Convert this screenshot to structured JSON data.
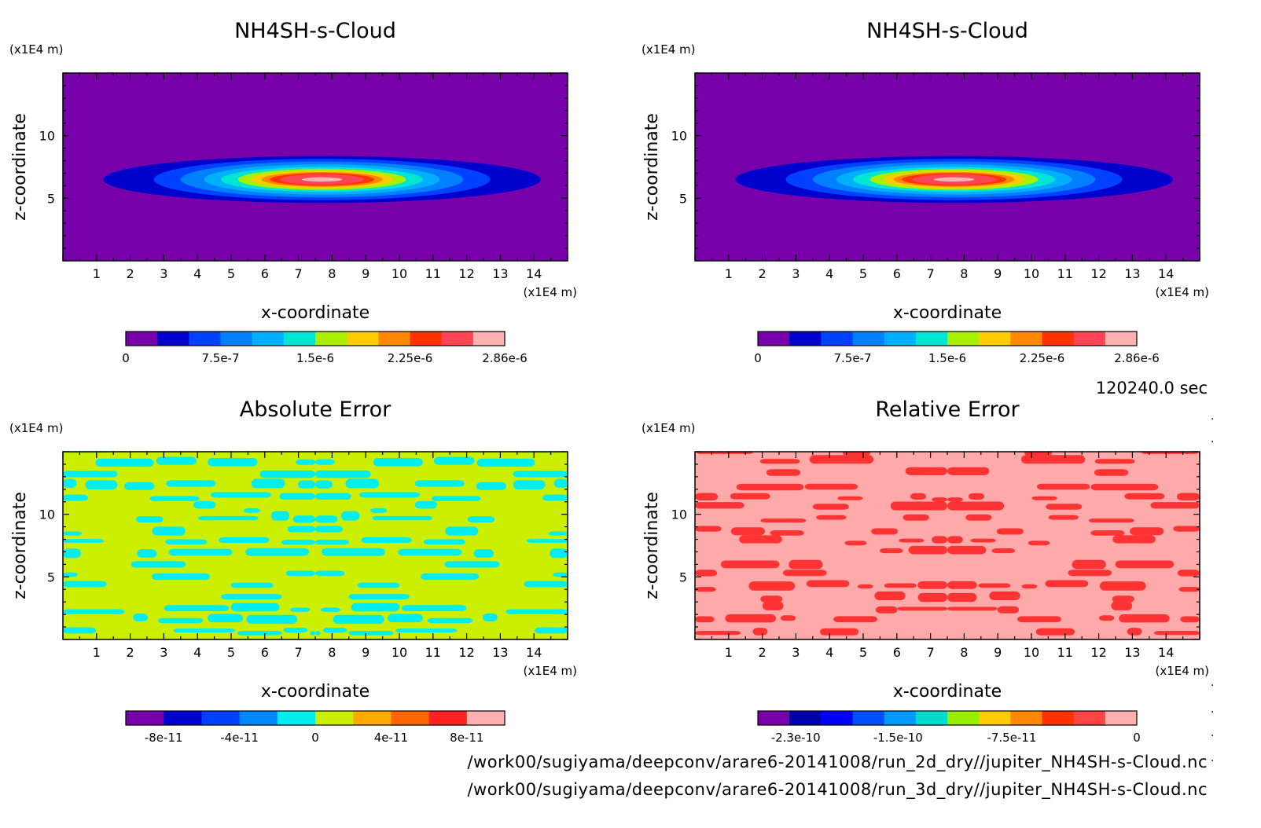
{
  "timestamp": "120240.0 sec",
  "footer": {
    "file_2d": "/work00/sugiyama/deepconv/arare6-20141008/run_2d_dry//jupiter_NH4SH-s-Cloud.nc",
    "file_3d": "/work00/sugiyama/deepconv/arare6-20141008/run_3d_dry//jupiter_NH4SH-s-Cloud.nc"
  },
  "chart_data": [
    {
      "type": "heatmap",
      "title": "NH4SH-s-Cloud",
      "xlabel": "x-coordinate",
      "ylabel": "z-coordinate",
      "x_unit": "(x1E4 m)",
      "y_unit": "(x1E4 m)",
      "xlim": [
        0,
        15
      ],
      "ylim": [
        0,
        15
      ],
      "x_ticks": [
        "1",
        "2",
        "3",
        "4",
        "5",
        "6",
        "7",
        "8",
        "9",
        "10",
        "11",
        "12",
        "13",
        "14"
      ],
      "y_ticks": [
        "5",
        "10"
      ],
      "field": "cloud",
      "background_color": "#7700aa",
      "colorbar": {
        "colors": [
          "#7700aa",
          "#0000cc",
          "#0040ff",
          "#0080ff",
          "#00b0ff",
          "#00e6d2",
          "#aaee00",
          "#ffcc00",
          "#ff8800",
          "#ff3300",
          "#ff4455",
          "#ffb0b0"
        ],
        "labels": [
          "0",
          "7.5e-7",
          "1.5e-6",
          "2.25e-6",
          "2.86e-6"
        ]
      }
    },
    {
      "type": "heatmap",
      "title": "NH4SH-s-Cloud",
      "xlabel": "x-coordinate",
      "ylabel": "z-coordinate",
      "x_unit": "(x1E4 m)",
      "y_unit": "(x1E4 m)",
      "xlim": [
        0,
        15
      ],
      "ylim": [
        0,
        15
      ],
      "x_ticks": [
        "1",
        "2",
        "3",
        "4",
        "5",
        "6",
        "7",
        "8",
        "9",
        "10",
        "11",
        "12",
        "13",
        "14"
      ],
      "y_ticks": [
        "5",
        "10"
      ],
      "field": "cloud",
      "background_color": "#7700aa",
      "colorbar": {
        "colors": [
          "#7700aa",
          "#0000cc",
          "#0040ff",
          "#0080ff",
          "#00b0ff",
          "#00e6d2",
          "#aaee00",
          "#ffcc00",
          "#ff8800",
          "#ff3300",
          "#ff4455",
          "#ffb0b0"
        ],
        "labels": [
          "0",
          "7.5e-7",
          "1.5e-6",
          "2.25e-6",
          "2.86e-6"
        ]
      }
    },
    {
      "type": "heatmap",
      "title": "Absolute Error",
      "xlabel": "x-coordinate",
      "ylabel": "z-coordinate",
      "x_unit": "(x1E4 m)",
      "y_unit": "(x1E4 m)",
      "xlim": [
        0,
        15
      ],
      "ylim": [
        0,
        15
      ],
      "x_ticks": [
        "1",
        "2",
        "3",
        "4",
        "5",
        "6",
        "7",
        "8",
        "9",
        "10",
        "11",
        "12",
        "13",
        "14"
      ],
      "y_ticks": [
        "5",
        "10"
      ],
      "field": "pattern",
      "background_color": "#ccee00",
      "pattern_color": "#00eeee",
      "colorbar": {
        "colors": [
          "#7700aa",
          "#0000cc",
          "#0040ff",
          "#0088ff",
          "#00eeee",
          "#ccee00",
          "#ffaa00",
          "#ff6600",
          "#ff2222",
          "#ffb0b0"
        ],
        "labels": [
          "-8e-11",
          "-4e-11",
          "0",
          "4e-11",
          "8e-11"
        ]
      }
    },
    {
      "type": "heatmap",
      "title": "Relative Error",
      "xlabel": "x-coordinate",
      "ylabel": "z-coordinate",
      "x_unit": "(x1E4 m)",
      "y_unit": "(x1E4 m)",
      "xlim": [
        0,
        15
      ],
      "ylim": [
        0,
        15
      ],
      "x_ticks": [
        "1",
        "2",
        "3",
        "4",
        "5",
        "6",
        "7",
        "8",
        "9",
        "10",
        "11",
        "12",
        "13",
        "14"
      ],
      "y_ticks": [
        "5",
        "10"
      ],
      "field": "pattern",
      "background_color": "#ffaaaa",
      "pattern_color": "#ff3333",
      "colorbar": {
        "colors": [
          "#7700aa",
          "#0000aa",
          "#0000ff",
          "#0050ff",
          "#0099ff",
          "#00ddcc",
          "#99ee00",
          "#ffcc00",
          "#ff8800",
          "#ff3300",
          "#ff4444",
          "#ffb0b0"
        ],
        "labels": [
          "-2.3e-10",
          "-1.5e-10",
          "-7.5e-11",
          "0"
        ]
      }
    }
  ]
}
